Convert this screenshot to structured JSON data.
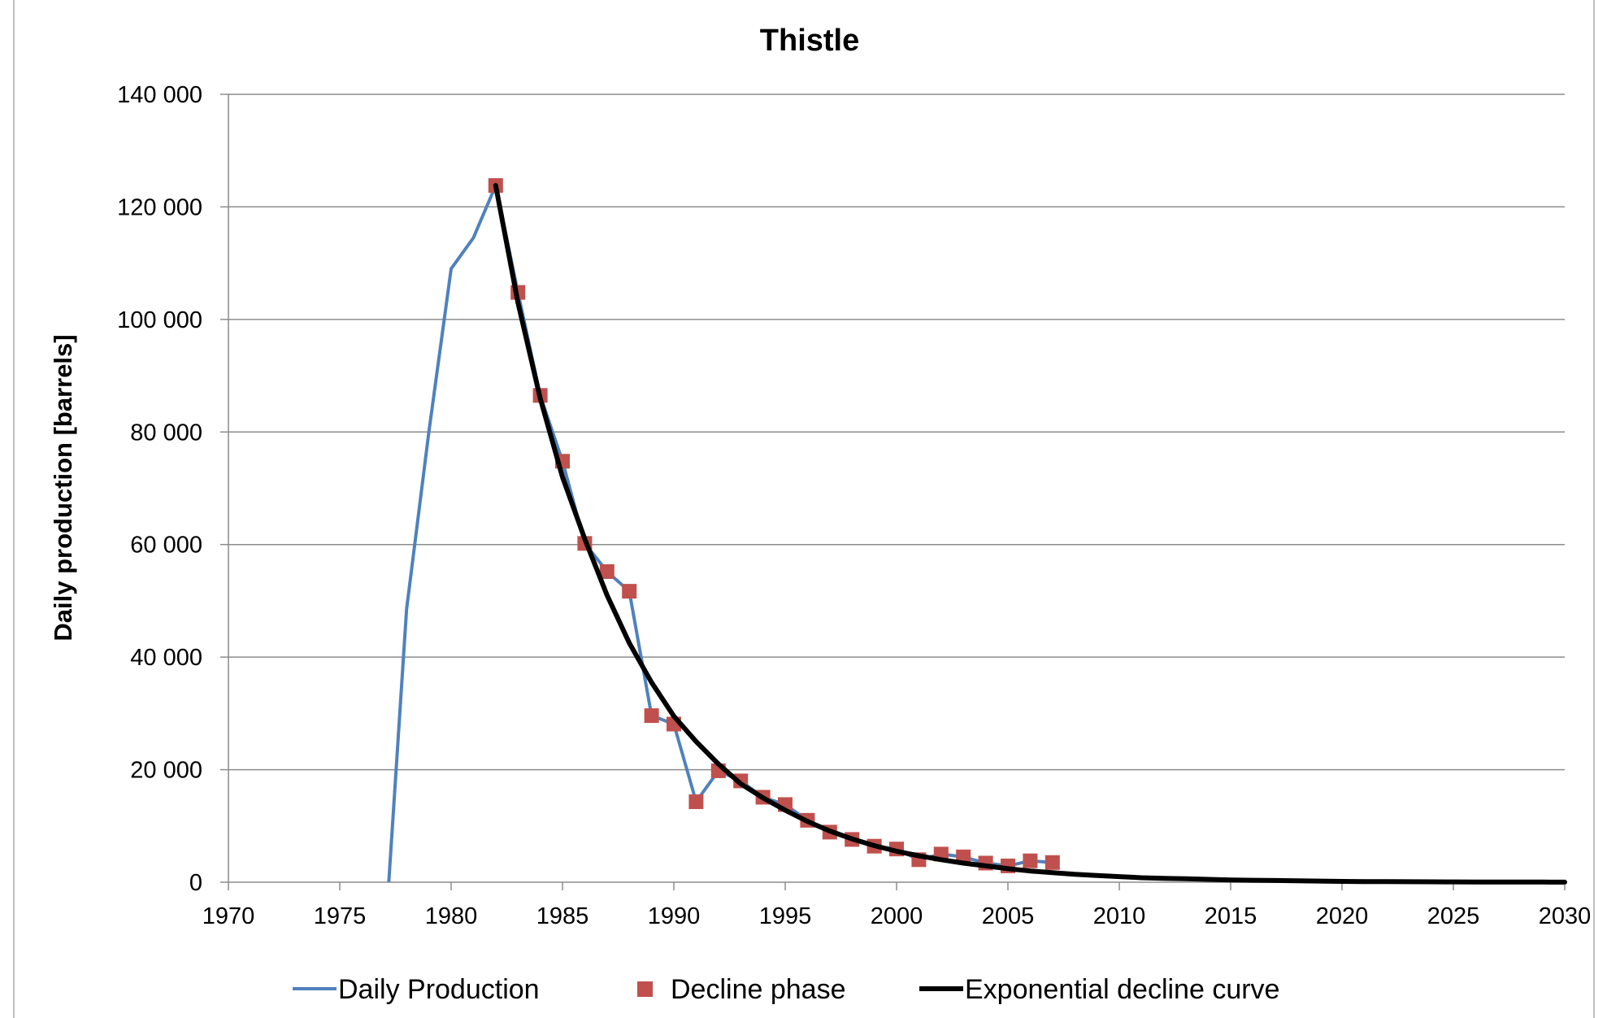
{
  "chart_data": {
    "type": "line",
    "title": "Thistle",
    "xlabel": "",
    "ylabel": "Daily production  [barrels]",
    "xlim": [
      1970,
      2030
    ],
    "ylim": [
      0,
      140000
    ],
    "x_ticks": [
      1970,
      1975,
      1980,
      1985,
      1990,
      1995,
      2000,
      2005,
      2010,
      2015,
      2020,
      2025,
      2030
    ],
    "y_ticks": [
      0,
      20000,
      40000,
      60000,
      80000,
      100000,
      120000,
      140000
    ],
    "x_tick_labels": [
      "1970",
      "1975",
      "1980",
      "1985",
      "1990",
      "1995",
      "2000",
      "2005",
      "2010",
      "2015",
      "2020",
      "2025",
      "2030"
    ],
    "y_tick_labels": [
      "0",
      "20 000",
      "40 000",
      "60 000",
      "80 000",
      "100 000",
      "120 000",
      "140 000"
    ],
    "grid": true,
    "legend_position": "bottom",
    "series": [
      {
        "name": "Daily Production",
        "type": "line",
        "color": "#4f81bd",
        "x": [
          1977.2,
          1978,
          1979,
          1980,
          1981,
          1982,
          1983,
          1984,
          1985,
          1986,
          1987,
          1988,
          1989,
          1990,
          1991,
          1992,
          1993,
          1994,
          1995,
          1996,
          1997,
          1998,
          1999,
          2000,
          2001,
          2002,
          2003,
          2004,
          2005,
          2006,
          2007
        ],
        "y": [
          0,
          48500,
          80000,
          109000,
          114500,
          123800,
          104800,
          86500,
          74800,
          60200,
          55200,
          51700,
          29600,
          28100,
          14300,
          19800,
          18000,
          15100,
          13800,
          11000,
          8900,
          7600,
          6400,
          5900,
          4000,
          5000,
          4500,
          3400,
          2900,
          3800,
          3500
        ]
      },
      {
        "name": "Decline phase",
        "type": "scatter",
        "color": "#c0504d",
        "x": [
          1982,
          1983,
          1984,
          1985,
          1986,
          1987,
          1988,
          1989,
          1990,
          1991,
          1992,
          1993,
          1994,
          1995,
          1996,
          1997,
          1998,
          1999,
          2000,
          2001,
          2002,
          2003,
          2004,
          2005,
          2006,
          2007
        ],
        "y": [
          123800,
          104800,
          86500,
          74800,
          60200,
          55200,
          51700,
          29600,
          28100,
          14300,
          19800,
          18000,
          15100,
          13800,
          11000,
          8900,
          7600,
          6400,
          5900,
          4000,
          5000,
          4500,
          3400,
          2900,
          3800,
          3500
        ]
      },
      {
        "name": "Exponential decline curve",
        "type": "line",
        "color": "#000000",
        "x": [
          1982,
          1983,
          1984,
          1985,
          1986,
          1987,
          1988,
          1989,
          1990,
          1991,
          1992,
          1993,
          1994,
          1995,
          1996,
          1997,
          1998,
          1999,
          2000,
          2001,
          2002,
          2003,
          2004,
          2005,
          2006,
          2007,
          2008,
          2009,
          2010,
          2011,
          2012,
          2013,
          2014,
          2015,
          2016,
          2017,
          2018,
          2019,
          2020,
          2021,
          2022,
          2023,
          2024,
          2025,
          2026,
          2027,
          2028,
          2029,
          2030
        ],
        "y": [
          123800,
          103000,
          86000,
          72000,
          61000,
          51000,
          42500,
          35500,
          29500,
          25000,
          21000,
          17500,
          15000,
          12800,
          10800,
          9100,
          7700,
          6500,
          5500,
          4700,
          4000,
          3400,
          2900,
          2400,
          2000,
          1700,
          1400,
          1200,
          1000,
          800,
          700,
          600,
          500,
          400,
          350,
          300,
          250,
          200,
          150,
          120,
          100,
          80,
          70,
          60,
          50,
          40,
          30,
          25,
          20
        ]
      }
    ]
  }
}
